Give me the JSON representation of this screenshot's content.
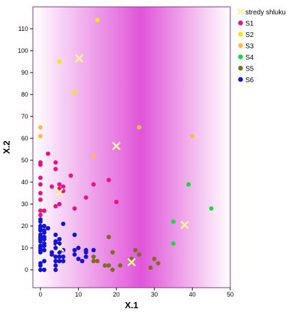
{
  "chart_data": {
    "type": "scatter",
    "xlabel": "X.1",
    "ylabel": "X.2",
    "xlim": [
      0,
      50
    ],
    "ylim": [
      0,
      118
    ],
    "xticks": [
      "0",
      "10",
      "20",
      "30",
      "40",
      "50"
    ],
    "yticks": [
      "0",
      "10",
      "20",
      "30",
      "40",
      "50",
      "60",
      "70",
      "80",
      "90",
      "100",
      "110"
    ],
    "grid": false,
    "legend_position": "right",
    "background": {
      "edge": "#ffffff",
      "center": "#e055d8"
    },
    "series": [
      {
        "name": "stredy shluku",
        "marker": "x",
        "color": "#fff2a0",
        "points": [
          [
            5.2,
            10
          ],
          [
            10.2,
            96.5
          ],
          [
            20,
            56.5
          ],
          [
            24,
            3.5
          ],
          [
            38,
            20.5
          ],
          [
            5,
            35.5
          ]
        ]
      },
      {
        "name": "S1",
        "marker": "circle",
        "color": "#e6157f",
        "points": [
          [
            0,
            49
          ],
          [
            0,
            48
          ],
          [
            0,
            42
          ],
          [
            0,
            39
          ],
          [
            0,
            35
          ],
          [
            0,
            32
          ],
          [
            0,
            27
          ],
          [
            0,
            25
          ],
          [
            1,
            27
          ],
          [
            2,
            53
          ],
          [
            3,
            38
          ],
          [
            4,
            49
          ],
          [
            4,
            46
          ],
          [
            4,
            29
          ],
          [
            5,
            39
          ],
          [
            5,
            37
          ],
          [
            5,
            30
          ],
          [
            6,
            38
          ],
          [
            6,
            36
          ],
          [
            8,
            43
          ],
          [
            9,
            28
          ],
          [
            12,
            33
          ],
          [
            14,
            39
          ],
          [
            18,
            41
          ],
          [
            20,
            31
          ]
        ]
      },
      {
        "name": "S2",
        "marker": "circle",
        "color": "#f2e60e",
        "points": [
          [
            5,
            95
          ],
          [
            9,
            81
          ],
          [
            15,
            114
          ]
        ]
      },
      {
        "name": "S3",
        "marker": "circle",
        "color": "#f9bd46",
        "points": [
          [
            0,
            65
          ],
          [
            0,
            61
          ],
          [
            14,
            52
          ],
          [
            26,
            65
          ],
          [
            40,
            61
          ]
        ]
      },
      {
        "name": "S4",
        "marker": "circle",
        "color": "#17d93a",
        "points": [
          [
            35,
            22
          ],
          [
            35,
            12
          ],
          [
            39,
            39
          ],
          [
            45,
            28
          ]
        ]
      },
      {
        "name": "S5",
        "marker": "circle",
        "color": "#7e6b24",
        "points": [
          [
            14,
            6
          ],
          [
            14,
            4
          ],
          [
            15,
            4
          ],
          [
            17,
            2
          ],
          [
            18,
            2
          ],
          [
            18,
            15
          ],
          [
            19,
            8
          ],
          [
            19,
            0
          ],
          [
            21,
            2
          ],
          [
            24,
            5
          ],
          [
            25,
            9
          ],
          [
            26,
            7
          ],
          [
            29,
            1
          ],
          [
            30,
            5
          ],
          [
            31,
            3
          ]
        ]
      },
      {
        "name": "S6",
        "marker": "circle",
        "color": "#1414d2",
        "points": [
          [
            0,
            0
          ],
          [
            0,
            2
          ],
          [
            0,
            3
          ],
          [
            0,
            8
          ],
          [
            0,
            9
          ],
          [
            0,
            10
          ],
          [
            0,
            11
          ],
          [
            0,
            13
          ],
          [
            0,
            14
          ],
          [
            0,
            15
          ],
          [
            0,
            16
          ],
          [
            0,
            18
          ],
          [
            0,
            19
          ],
          [
            0,
            20
          ],
          [
            0,
            22
          ],
          [
            0,
            23
          ],
          [
            1,
            0
          ],
          [
            1,
            4
          ],
          [
            1,
            9
          ],
          [
            1,
            11
          ],
          [
            1,
            12
          ],
          [
            1,
            14
          ],
          [
            1,
            15
          ],
          [
            1,
            17
          ],
          [
            1,
            18
          ],
          [
            1,
            20
          ],
          [
            2,
            19
          ],
          [
            3,
            7
          ],
          [
            3,
            8
          ],
          [
            4,
            0
          ],
          [
            4,
            2
          ],
          [
            4,
            4
          ],
          [
            4,
            6
          ],
          [
            4,
            10
          ],
          [
            4,
            12
          ],
          [
            4,
            13
          ],
          [
            4,
            16
          ],
          [
            5,
            4
          ],
          [
            5,
            6
          ],
          [
            5,
            8
          ],
          [
            5,
            12
          ],
          [
            5,
            14
          ],
          [
            6,
            4
          ],
          [
            6,
            6
          ],
          [
            6,
            9
          ],
          [
            6,
            21
          ],
          [
            9,
            7
          ],
          [
            9,
            9
          ],
          [
            9,
            16
          ],
          [
            10,
            5
          ],
          [
            10,
            10
          ],
          [
            11,
            4
          ],
          [
            12,
            6
          ],
          [
            12,
            8
          ],
          [
            12,
            9
          ],
          [
            14,
            9
          ]
        ]
      }
    ]
  }
}
